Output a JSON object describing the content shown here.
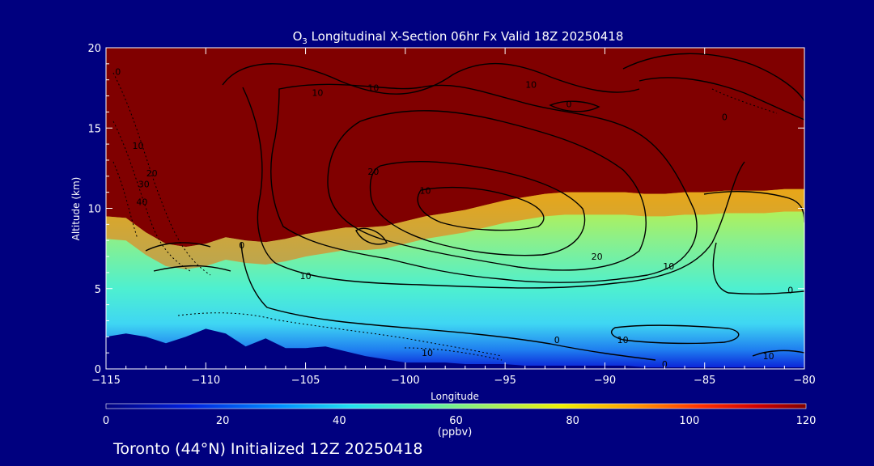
{
  "chart_data": {
    "type": "heatmap",
    "title_prefix": "O",
    "title_subscript": "3",
    "title_rest": " Longitudinal X-Section 06hr  Fx Valid 18Z 20250418",
    "xlabel": "Longitude",
    "ylabel": "Altitude (km)",
    "xlim": [
      -115,
      -80
    ],
    "ylim": [
      0,
      20
    ],
    "x_ticks": [
      -115,
      -110,
      -105,
      -100,
      -95,
      -90,
      -85,
      -80
    ],
    "y_ticks": [
      0,
      5,
      10,
      15,
      20
    ],
    "colorbar": {
      "label": "(ppbv)",
      "range": [
        0,
        120
      ],
      "ticks": [
        0,
        20,
        40,
        60,
        80,
        100,
        120
      ]
    },
    "tropopause_km": [
      [
        -115,
        9.5
      ],
      [
        -114,
        9.4
      ],
      [
        -113,
        8.5
      ],
      [
        -112,
        7.8
      ],
      [
        -111,
        7.6
      ],
      [
        -110,
        7.8
      ],
      [
        -109,
        8.2
      ],
      [
        -108,
        8.0
      ],
      [
        -107,
        7.9
      ],
      [
        -106,
        8.1
      ],
      [
        -105,
        8.4
      ],
      [
        -104,
        8.6
      ],
      [
        -103,
        8.8
      ],
      [
        -102,
        8.8
      ],
      [
        -101,
        8.9
      ],
      [
        -100,
        9.2
      ],
      [
        -99,
        9.5
      ],
      [
        -98,
        9.7
      ],
      [
        -97,
        9.9
      ],
      [
        -96,
        10.2
      ],
      [
        -95,
        10.5
      ],
      [
        -94,
        10.7
      ],
      [
        -93,
        10.9
      ],
      [
        -92,
        11.0
      ],
      [
        -91,
        11.0
      ],
      [
        -90,
        11.0
      ],
      [
        -89,
        11.0
      ],
      [
        -88,
        10.9
      ],
      [
        -87,
        10.9
      ],
      [
        -86,
        11.0
      ],
      [
        -85,
        11.0
      ],
      [
        -84,
        11.1
      ],
      [
        -83,
        11.1
      ],
      [
        -82,
        11.1
      ],
      [
        -81,
        11.2
      ],
      [
        -80,
        11.2
      ]
    ],
    "terrain_km": [
      [
        -115,
        2.0
      ],
      [
        -114,
        2.2
      ],
      [
        -113,
        2.0
      ],
      [
        -112,
        1.6
      ],
      [
        -111,
        2.0
      ],
      [
        -110,
        2.5
      ],
      [
        -109,
        2.2
      ],
      [
        -108,
        1.4
      ],
      [
        -107,
        1.9
      ],
      [
        -106,
        1.3
      ],
      [
        -105,
        1.3
      ],
      [
        -104,
        1.4
      ],
      [
        -103,
        1.1
      ],
      [
        -102,
        0.8
      ],
      [
        -101,
        0.6
      ],
      [
        -100,
        0.4
      ],
      [
        -99,
        0.4
      ],
      [
        -98,
        0.4
      ],
      [
        -97,
        0.3
      ],
      [
        -96,
        0.3
      ],
      [
        -95,
        0.3
      ],
      [
        -94,
        0.2
      ],
      [
        -93,
        0.2
      ],
      [
        -92,
        0.2
      ],
      [
        -91,
        0.2
      ],
      [
        -90,
        0.2
      ],
      [
        -89,
        0.2
      ],
      [
        -88,
        0.1
      ],
      [
        -87,
        0.1
      ],
      [
        -86,
        0.1
      ],
      [
        -85,
        0.1
      ],
      [
        -84,
        0.1
      ],
      [
        -83,
        0.1
      ],
      [
        -82,
        0.1
      ],
      [
        -81,
        0.1
      ],
      [
        -80,
        0.1
      ]
    ],
    "contour_labels": [
      {
        "text": "0",
        "lon": -114.4,
        "alt": 18.3
      },
      {
        "text": "10",
        "lon": -113.4,
        "alt": 13.7
      },
      {
        "text": "20",
        "lon": -112.7,
        "alt": 12.0
      },
      {
        "text": "30",
        "lon": -113.1,
        "alt": 11.3
      },
      {
        "text": "40",
        "lon": -113.2,
        "alt": 10.2
      },
      {
        "text": "10",
        "lon": -104.4,
        "alt": 17.0
      },
      {
        "text": "10",
        "lon": -101.6,
        "alt": 17.3
      },
      {
        "text": "10",
        "lon": -93.7,
        "alt": 17.5
      },
      {
        "text": "0",
        "lon": -91.8,
        "alt": 16.3
      },
      {
        "text": "0",
        "lon": -84.0,
        "alt": 15.5
      },
      {
        "text": "20",
        "lon": -101.6,
        "alt": 12.1
      },
      {
        "text": "10",
        "lon": -99.0,
        "alt": 10.9
      },
      {
        "text": "0",
        "lon": -108.2,
        "alt": 7.5
      },
      {
        "text": "10",
        "lon": -105.0,
        "alt": 5.6
      },
      {
        "text": "20",
        "lon": -90.4,
        "alt": 6.8
      },
      {
        "text": "10",
        "lon": -86.8,
        "alt": 6.2
      },
      {
        "text": "0",
        "lon": -80.7,
        "alt": 4.7
      },
      {
        "text": "0",
        "lon": -92.4,
        "alt": 1.6
      },
      {
        "text": "10",
        "lon": -89.1,
        "alt": 1.6
      },
      {
        "text": "0",
        "lon": -87.0,
        "alt": 0.1
      },
      {
        "text": "10",
        "lon": -98.9,
        "alt": 0.8
      },
      {
        "text": "10",
        "lon": -81.8,
        "alt": 0.6
      }
    ]
  },
  "footer": {
    "text": "Toronto (44°N) Initialized 12Z 20250418"
  },
  "colors": {
    "background": "#00007f",
    "stratosphere": "#800000",
    "terrain": "#00007f"
  }
}
